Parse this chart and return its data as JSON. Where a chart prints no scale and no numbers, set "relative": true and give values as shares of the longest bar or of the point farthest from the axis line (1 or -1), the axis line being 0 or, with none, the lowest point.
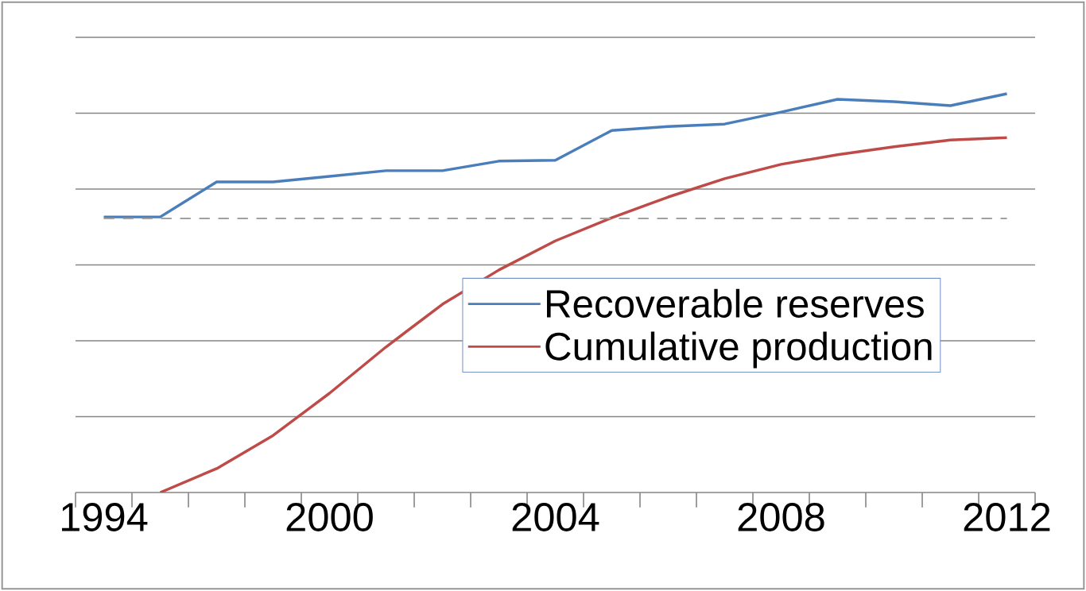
{
  "chart_data": {
    "type": "line",
    "relative": true,
    "categories": [
      "1994",
      null,
      null,
      null,
      "2000",
      null,
      null,
      null,
      "2004",
      null,
      null,
      null,
      "2008",
      null,
      null,
      null,
      "2012"
    ],
    "series": [
      {
        "name": "Recoverable reserves",
        "color": "#4a7ebb",
        "values": [
          0.691,
          0.691,
          0.779,
          0.779,
          0.793,
          0.807,
          0.807,
          0.831,
          0.833,
          0.908,
          0.918,
          0.924,
          0.954,
          0.986,
          0.98,
          0.97,
          1
        ]
      },
      {
        "name": "Cumulative production",
        "color": "#be4b48",
        "values": [
          null,
          0,
          0.06,
          0.143,
          0.249,
          0.365,
          0.472,
          0.558,
          0.631,
          0.689,
          0.741,
          0.787,
          0.823,
          0.847,
          0.867,
          0.884,
          0.89
        ]
      }
    ],
    "ref_lines": [
      {
        "axis": "y",
        "value": 0.687,
        "color": "#a0a0a0",
        "line_style": "dashed"
      }
    ],
    "grid": "y",
    "legend": "right",
    "marker": "none",
    "line_style": "solid"
  }
}
